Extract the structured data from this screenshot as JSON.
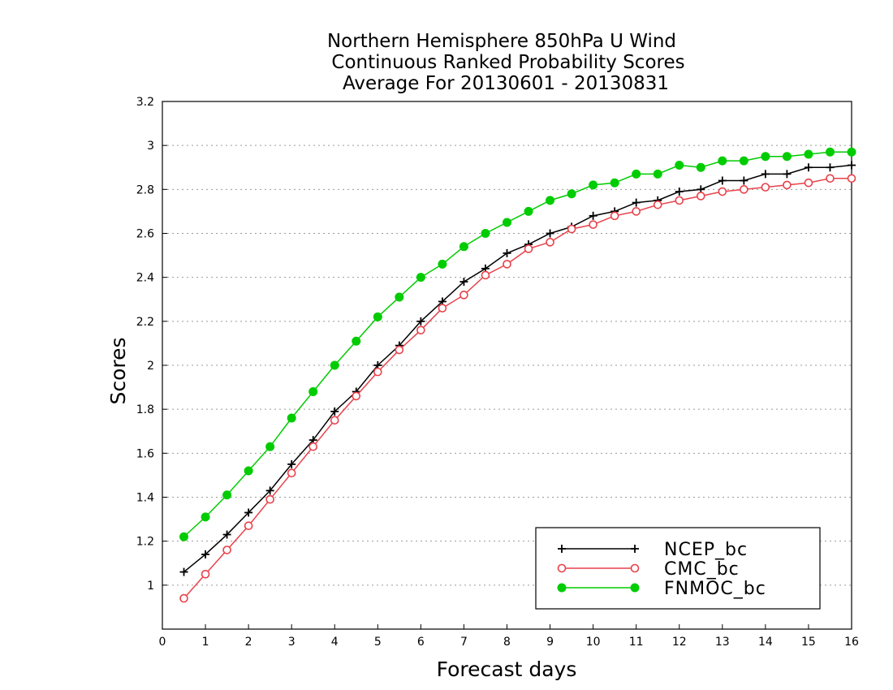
{
  "chart_data": {
    "type": "line",
    "title_lines": [
      "Northern Hemisphere 850hPa U Wind",
      "Continuous Ranked Probability Scores",
      "Average For 20130601 - 20130831"
    ],
    "xlabel": "Forecast days",
    "ylabel": "Scores",
    "xlim": [
      0,
      16
    ],
    "ylim": [
      0.8,
      3.2
    ],
    "x_ticks": [
      "0",
      "1",
      "2",
      "3",
      "4",
      "5",
      "6",
      "7",
      "8",
      "9",
      "10",
      "11",
      "12",
      "13",
      "14",
      "15",
      "16"
    ],
    "y_ticks": [
      "1",
      "1.2",
      "1.4",
      "1.6",
      "1.8",
      "2",
      "2.2",
      "2.4",
      "2.6",
      "2.8",
      "3",
      "3.2"
    ],
    "grid": "horizontal dotted",
    "legend_position": "bottom-right",
    "x": [
      0.5,
      1,
      1.5,
      2,
      2.5,
      3,
      3.5,
      4,
      4.5,
      5,
      5.5,
      6,
      6.5,
      7,
      7.5,
      8,
      8.5,
      9,
      9.5,
      10,
      10.5,
      11,
      11.5,
      12,
      12.5,
      13,
      13.5,
      14,
      14.5,
      15,
      15.5,
      16
    ],
    "series": [
      {
        "name": "NCEP_bc",
        "color": "#000000",
        "marker": "plus",
        "values": [
          1.06,
          1.14,
          1.23,
          1.33,
          1.43,
          1.55,
          1.66,
          1.79,
          1.88,
          2.0,
          2.09,
          2.2,
          2.29,
          2.38,
          2.44,
          2.51,
          2.55,
          2.6,
          2.63,
          2.68,
          2.7,
          2.74,
          2.75,
          2.79,
          2.8,
          2.84,
          2.84,
          2.87,
          2.87,
          2.9,
          2.9,
          2.91
        ]
      },
      {
        "name": "CMC_bc",
        "color": "#e8414a",
        "marker": "open-circle",
        "values": [
          0.94,
          1.05,
          1.16,
          1.27,
          1.39,
          1.51,
          1.63,
          1.75,
          1.86,
          1.97,
          2.07,
          2.16,
          2.26,
          2.32,
          2.41,
          2.46,
          2.53,
          2.56,
          2.62,
          2.64,
          2.68,
          2.7,
          2.73,
          2.75,
          2.77,
          2.79,
          2.8,
          2.81,
          2.82,
          2.83,
          2.85,
          2.85
        ]
      },
      {
        "name": "FNMOC_bc",
        "color": "#00cc00",
        "marker": "filled-circle",
        "values": [
          1.22,
          1.31,
          1.41,
          1.52,
          1.63,
          1.76,
          1.88,
          2.0,
          2.11,
          2.22,
          2.31,
          2.4,
          2.46,
          2.54,
          2.6,
          2.65,
          2.7,
          2.75,
          2.78,
          2.82,
          2.83,
          2.87,
          2.87,
          2.91,
          2.9,
          2.93,
          2.93,
          2.95,
          2.95,
          2.96,
          2.97,
          2.97
        ]
      }
    ]
  }
}
